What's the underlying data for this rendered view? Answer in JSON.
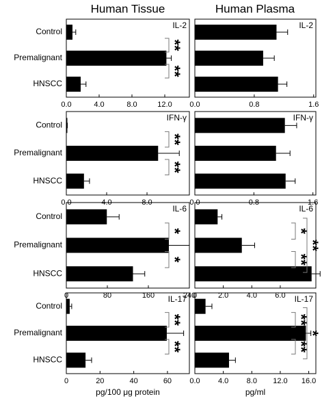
{
  "column_titles": [
    "Human Tissue",
    "Human Plasma"
  ],
  "chart_data": [
    {
      "type": "barh",
      "title": "IL-2",
      "categories": [
        "Control",
        "Premalignant",
        "HNSCC"
      ],
      "values": [
        0.75,
        12.2,
        1.75
      ],
      "errors": [
        0.4,
        0.6,
        0.65
      ],
      "color": "#000000",
      "xlim": [
        0,
        15
      ],
      "xticks": [
        {
          "value": 0,
          "label": "0.0"
        },
        {
          "value": 4,
          "label": "4.0"
        },
        {
          "value": 8,
          "label": "8.0"
        },
        {
          "value": 12,
          "label": "12.0"
        }
      ],
      "annotations": [
        {
          "text": "**",
          "between": [
            "Control",
            "Premalignant"
          ]
        },
        {
          "text": "**",
          "between": [
            "Premalignant",
            "HNSCC"
          ]
        }
      ]
    },
    {
      "type": "barh",
      "title": "IL-2",
      "categories": [
        null,
        null,
        null
      ],
      "values": [
        1.1,
        0.92,
        1.12
      ],
      "errors": [
        0.15,
        0.15,
        0.12
      ],
      "color": "#000000",
      "xlim": [
        0,
        1.63
      ],
      "xticks": [
        {
          "value": 0,
          "label": "0.0"
        },
        {
          "value": 0.8,
          "label": "0.8"
        },
        {
          "value": 1.6,
          "label": "1.6"
        }
      ]
    },
    {
      "type": "barh",
      "title": "IFN-γ",
      "categories": [
        "Control",
        "Premalignant",
        "HNSCC"
      ],
      "values": [
        0.1,
        9.1,
        1.75
      ],
      "errors": [
        0,
        2.1,
        0.55
      ],
      "color": "#000000",
      "xlim": [
        0,
        12.2
      ],
      "xticks": [
        {
          "value": 0,
          "label": "0.0"
        },
        {
          "value": 4,
          "label": "4.0"
        },
        {
          "value": 8,
          "label": "8.0"
        }
      ],
      "annotations": [
        {
          "text": "**",
          "between": [
            "Control",
            "Premalignant"
          ]
        },
        {
          "text": "**",
          "between": [
            "Premalignant",
            "HNSCC"
          ]
        }
      ]
    },
    {
      "type": "barh",
      "title": "IFN-γ",
      "categories": [
        null,
        null,
        null
      ],
      "values": [
        1.22,
        1.1,
        1.23
      ],
      "errors": [
        0.16,
        0.19,
        0.13
      ],
      "color": "#000000",
      "xlim": [
        0,
        1.64
      ],
      "xticks": [
        {
          "value": 0,
          "label": "0.0"
        },
        {
          "value": 0.8,
          "label": "0.8"
        },
        {
          "value": 1.6,
          "label": "1.6"
        }
      ]
    },
    {
      "type": "barh",
      "title": "IL-6",
      "categories": [
        "Control",
        "Premalignant",
        "HNSCC"
      ],
      "values": [
        79,
        200,
        130
      ],
      "errors": [
        24,
        40,
        23
      ],
      "color": "#000000",
      "xlim": [
        0,
        240
      ],
      "xticks": [
        0,
        80,
        160,
        240
      ],
      "annotations": [
        {
          "text": "*",
          "between": [
            "Control",
            "Premalignant"
          ]
        },
        {
          "text": "*",
          "between": [
            "Premalignant",
            "HNSCC"
          ]
        }
      ]
    },
    {
      "type": "barh",
      "title": "IL-6",
      "categories": [
        null,
        null,
        null
      ],
      "values": [
        1.6,
        3.3,
        8.2
      ],
      "errors": [
        0.3,
        0.9,
        0.6
      ],
      "color": "#000000",
      "xlim": [
        0,
        8.5
      ],
      "xticks": [
        0,
        {
          "value": 2,
          "label": "2.0"
        },
        {
          "value": 4,
          "label": "4.0"
        },
        {
          "value": 6,
          "label": "6.0"
        }
      ],
      "annotations": [
        {
          "text": "*",
          "between": [
            "Control",
            "Premalignant"
          ]
        },
        {
          "text": "**",
          "between": [
            "Premalignant",
            "HNSCC"
          ]
        },
        {
          "text": "**",
          "between": [
            "Control",
            "HNSCC"
          ]
        }
      ]
    },
    {
      "type": "barh",
      "title": "IL-17",
      "categories": [
        "Control",
        "Premalignant",
        "HNSCC"
      ],
      "values": [
        2,
        59.6,
        11.4
      ],
      "errors": [
        1.2,
        10,
        3.6
      ],
      "color": "#000000",
      "xlim": [
        0,
        73
      ],
      "xticks": [
        0,
        20,
        40,
        60
      ],
      "xlabel": "pg/100 μg protein",
      "annotations": [
        {
          "text": "**",
          "between": [
            "Control",
            "Premalignant"
          ]
        },
        {
          "text": "**",
          "between": [
            "Premalignant",
            "HNSCC"
          ]
        }
      ]
    },
    {
      "type": "barh",
      "title": "IL-17",
      "categories": [
        null,
        null,
        null
      ],
      "values": [
        1.5,
        15.6,
        4.8
      ],
      "errors": [
        0.9,
        0.7,
        0.9
      ],
      "color": "#000000",
      "xlim": [
        0,
        17
      ],
      "xticks": [
        {
          "value": 0,
          "label": "0.0"
        },
        {
          "value": 4,
          "label": "4.0"
        },
        {
          "value": 8,
          "label": "8.0"
        },
        {
          "value": 12,
          "label": "12.0"
        },
        {
          "value": 16,
          "label": "16.0"
        }
      ],
      "xlabel": "pg/ml",
      "annotations": [
        {
          "text": "**",
          "between": [
            "Control",
            "Premalignant"
          ]
        },
        {
          "text": "**",
          "between": [
            "Premalignant",
            "HNSCC"
          ]
        },
        {
          "text": "*",
          "between": [
            "Control",
            "HNSCC"
          ]
        }
      ]
    }
  ]
}
